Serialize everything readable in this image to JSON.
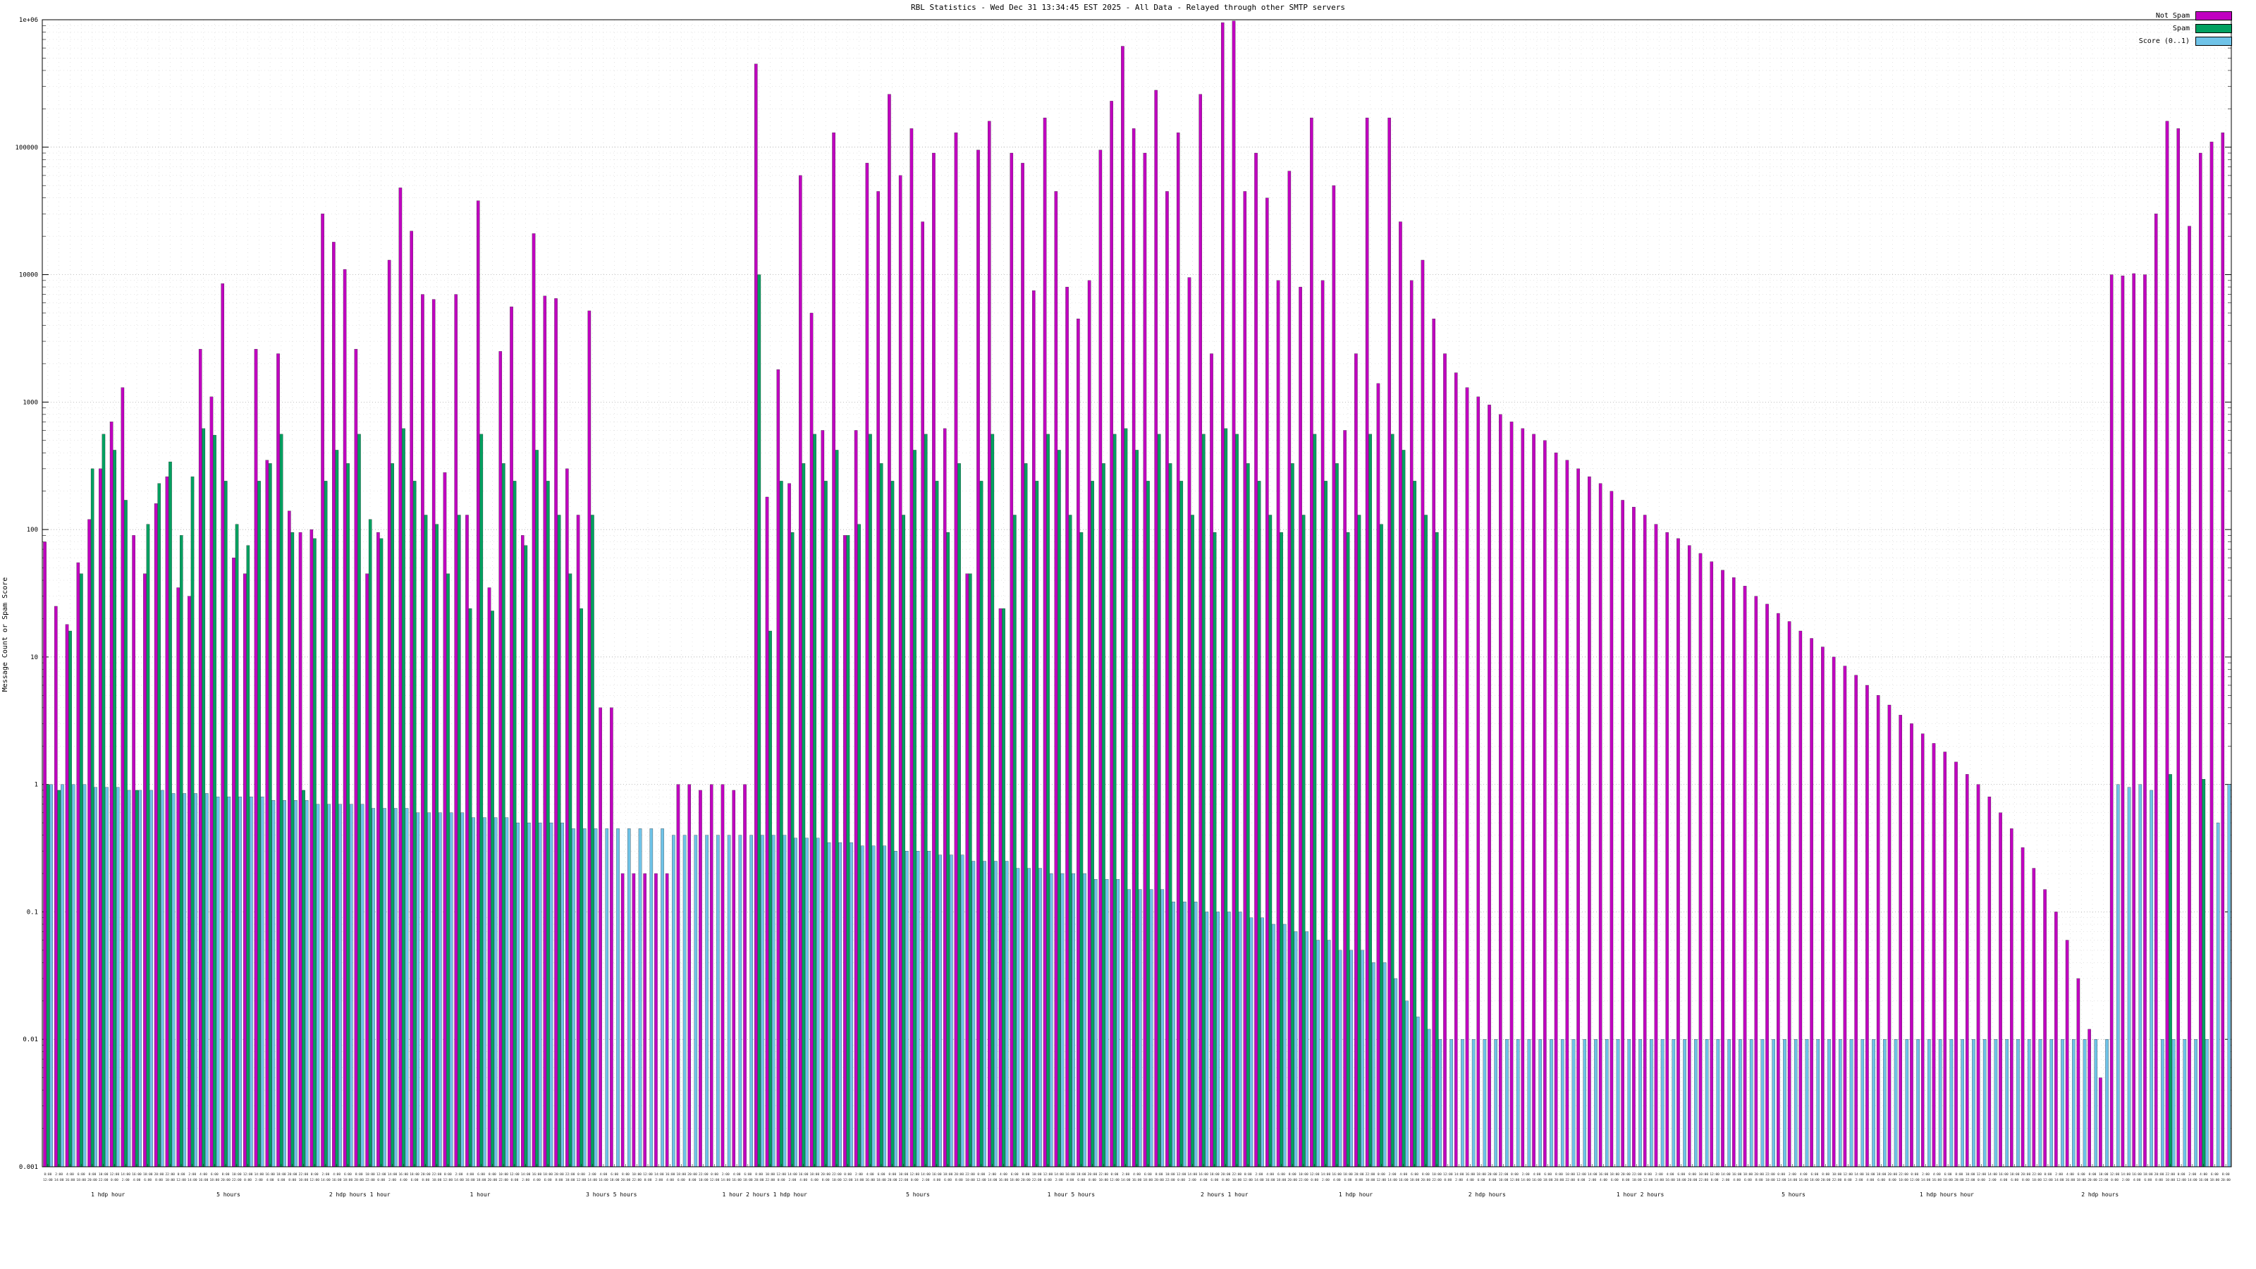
{
  "title": "RBL Statistics - Wed Dec 31 13:34:45 EST 2025 - All Data - Relayed through other SMTP servers",
  "y_axis": {
    "label": "Message Count or Spam Score",
    "min_exp": -3,
    "max_exp": 6,
    "ticks": [
      {
        "exp": 6,
        "label": "1e+06"
      },
      {
        "exp": 5,
        "label": "100000"
      },
      {
        "exp": 4,
        "label": "10000"
      },
      {
        "exp": 3,
        "label": "1000"
      },
      {
        "exp": 2,
        "label": "100"
      },
      {
        "exp": 1,
        "label": "10"
      },
      {
        "exp": 0,
        "label": "1"
      },
      {
        "exp": -1,
        "label": "0.1"
      },
      {
        "exp": -2,
        "label": "0.01"
      },
      {
        "exp": -3,
        "label": "0.001"
      }
    ]
  },
  "legend": [
    {
      "label": "Not Spam",
      "color": "#c000c0"
    },
    {
      "label": "Spam",
      "color": "#00a060"
    },
    {
      "label": "Score (0..1)",
      "color": "#6fc3e8"
    }
  ],
  "chart_data": {
    "type": "bar",
    "scale": "log",
    "ylim": [
      0.001,
      1000000
    ],
    "title": "RBL Statistics - Wed Dec 31 13:34:45 EST 2025 - All Data - Relayed through other SMTP servers",
    "xlabel": "",
    "ylabel": "Message Count or Spam Score",
    "grid": true,
    "legend_position": "top-right",
    "x_tick_cycle": [
      "0:00",
      "2:00",
      "4:00",
      "6:00",
      "8:00",
      "10:00",
      "12:00",
      "14:00",
      "16:00",
      "18:00",
      "20:00",
      "22:00"
    ],
    "x_group_labels": [
      {
        "text": "1 hdp hour",
        "pos": 0.03
      },
      {
        "text": "5 hours",
        "pos": 0.085
      },
      {
        "text": "2 hdp hours 1 hour",
        "pos": 0.145
      },
      {
        "text": "1 hour",
        "pos": 0.2
      },
      {
        "text": "3 hours 5 hours",
        "pos": 0.26
      },
      {
        "text": "1 hour 2 hours 1 hdp hour",
        "pos": 0.33
      },
      {
        "text": "5 hours",
        "pos": 0.4
      },
      {
        "text": "1 hour 5 hours",
        "pos": 0.47
      },
      {
        "text": "2 hours 1 hour",
        "pos": 0.54
      },
      {
        "text": "1 hdp hour",
        "pos": 0.6
      },
      {
        "text": "2 hdp hours",
        "pos": 0.66
      },
      {
        "text": "1 hour 2 hours",
        "pos": 0.73
      },
      {
        "text": "5 hours",
        "pos": 0.8
      },
      {
        "text": "1 hdp hours hour",
        "pos": 0.87
      },
      {
        "text": "2 hdp hours",
        "pos": 0.94
      }
    ],
    "series": [
      {
        "name": "Not Spam",
        "color": "#c000c0",
        "values": [
          80,
          25,
          18,
          55,
          120,
          300,
          700,
          1300,
          90,
          45,
          160,
          260,
          35,
          30,
          2600,
          1100,
          8500,
          60,
          45,
          2600,
          350,
          2400,
          140,
          95,
          100,
          30000,
          18000,
          11000,
          2600,
          45,
          95,
          13000,
          48000,
          22000,
          7000,
          6400,
          280,
          7000,
          130,
          38000,
          35,
          2500,
          5600,
          90,
          21000,
          6800,
          6500,
          300,
          130,
          5200,
          4,
          4,
          0.2,
          0.2,
          0.2,
          0.2,
          0.2,
          1,
          1,
          0.9,
          1,
          1,
          0.9,
          1,
          450000,
          180,
          1800,
          230,
          60000,
          5000,
          600,
          130000,
          90,
          600,
          75000,
          45000,
          260000,
          60000,
          140000,
          26000,
          90000,
          620,
          130000,
          45,
          95000,
          160000,
          24,
          90000,
          75000,
          7500,
          170000,
          45000,
          8000,
          4500,
          9000,
          95000,
          230000,
          620000,
          140000,
          90000,
          280000,
          45000,
          130000,
          9500,
          260000,
          2400,
          950000,
          980000,
          45000,
          90000,
          40000,
          9000,
          65000,
          8000,
          170000,
          9000,
          50000,
          600,
          2400,
          170000,
          1400,
          170000,
          26000,
          9000,
          13000,
          4500,
          2400,
          1700,
          1300,
          1100,
          950,
          800,
          700,
          620,
          560,
          500,
          400,
          350,
          300,
          260,
          230,
          200,
          170,
          150,
          130,
          110,
          95,
          85,
          75,
          65,
          56,
          48,
          42,
          36,
          30,
          26,
          22,
          19,
          16,
          14,
          12,
          10,
          8.5,
          7.2,
          6,
          5,
          4.2,
          3.5,
          3,
          2.5,
          2.1,
          1.8,
          1.5,
          1.2,
          1,
          0.8,
          0.6,
          0.45,
          0.32,
          0.22,
          0.15,
          0.1,
          0.06,
          0.03,
          0.012,
          0.005,
          10000,
          9800,
          10200,
          10000,
          30000,
          160000,
          140000,
          24000,
          90000,
          110000,
          130000
        ]
      },
      {
        "name": "Spam",
        "color": "#00a060",
        "values": [
          1,
          0.9,
          16,
          45,
          300,
          560,
          420,
          170,
          0.9,
          110,
          230,
          340,
          90,
          260,
          620,
          550,
          240,
          110,
          75,
          240,
          330,
          560,
          95,
          0.9,
          85,
          240,
          420,
          330,
          560,
          120,
          85,
          330,
          620,
          240,
          130,
          110,
          45,
          130,
          24,
          560,
          23,
          330,
          240,
          75,
          420,
          240,
          130,
          45,
          24,
          130,
          null,
          null,
          null,
          null,
          null,
          null,
          null,
          null,
          null,
          null,
          null,
          null,
          null,
          null,
          10000,
          16,
          240,
          95,
          330,
          560,
          240,
          420,
          90,
          110,
          560,
          330,
          240,
          130,
          420,
          560,
          240,
          95,
          330,
          45,
          240,
          560,
          24,
          130,
          330,
          240,
          560,
          420,
          130,
          95,
          240,
          330,
          560,
          620,
          420,
          240,
          560,
          330,
          240,
          130,
          560,
          95,
          620,
          560,
          330,
          240,
          130,
          95,
          330,
          130,
          560,
          240,
          330,
          95,
          130,
          560,
          110,
          560,
          420,
          240,
          130,
          95,
          null,
          null,
          null,
          null,
          null,
          null,
          null,
          null,
          null,
          null,
          null,
          null,
          null,
          null,
          null,
          null,
          null,
          null,
          null,
          null,
          null,
          null,
          null,
          null,
          null,
          null,
          null,
          null,
          null,
          null,
          null,
          null,
          null,
          null,
          null,
          null,
          null,
          null,
          null,
          null,
          null,
          null,
          null,
          null,
          null,
          null,
          null,
          null,
          null,
          null,
          null,
          null,
          null,
          null,
          null,
          null,
          null,
          null,
          null,
          null,
          null,
          null,
          null,
          null,
          null,
          1.2,
          null,
          null,
          1.1,
          null,
          null
        ]
      },
      {
        "name": "Score (0..1)",
        "color": "#6fc3e8",
        "values": [
          1,
          1,
          1,
          1,
          0.95,
          0.95,
          0.95,
          0.9,
          0.9,
          0.9,
          0.9,
          0.85,
          0.85,
          0.85,
          0.85,
          0.8,
          0.8,
          0.8,
          0.8,
          0.8,
          0.75,
          0.75,
          0.75,
          0.75,
          0.7,
          0.7,
          0.7,
          0.7,
          0.7,
          0.65,
          0.65,
          0.65,
          0.65,
          0.6,
          0.6,
          0.6,
          0.6,
          0.6,
          0.55,
          0.55,
          0.55,
          0.55,
          0.5,
          0.5,
          0.5,
          0.5,
          0.5,
          0.45,
          0.45,
          0.45,
          0.45,
          0.45,
          0.45,
          0.45,
          0.45,
          0.45,
          0.4,
          0.4,
          0.4,
          0.4,
          0.4,
          0.4,
          0.4,
          0.4,
          0.4,
          0.4,
          0.4,
          0.38,
          0.38,
          0.38,
          0.35,
          0.35,
          0.35,
          0.33,
          0.33,
          0.33,
          0.3,
          0.3,
          0.3,
          0.3,
          0.28,
          0.28,
          0.28,
          0.25,
          0.25,
          0.25,
          0.25,
          0.22,
          0.22,
          0.22,
          0.2,
          0.2,
          0.2,
          0.2,
          0.18,
          0.18,
          0.18,
          0.15,
          0.15,
          0.15,
          0.15,
          0.12,
          0.12,
          0.12,
          0.1,
          0.1,
          0.1,
          0.1,
          0.09,
          0.09,
          0.08,
          0.08,
          0.07,
          0.07,
          0.06,
          0.06,
          0.05,
          0.05,
          0.05,
          0.04,
          0.04,
          0.03,
          0.02,
          0.015,
          0.012,
          0.01,
          0.01,
          0.01,
          0.01,
          0.01,
          0.01,
          0.01,
          0.01,
          0.01,
          0.01,
          0.01,
          0.01,
          0.01,
          0.01,
          0.01,
          0.01,
          0.01,
          0.01,
          0.01,
          0.01,
          0.01,
          0.01,
          0.01,
          0.01,
          0.01,
          0.01,
          0.01,
          0.01,
          0.01,
          0.01,
          0.01,
          0.01,
          0.01,
          0.01,
          0.01,
          0.01,
          0.01,
          0.01,
          0.01,
          0.01,
          0.01,
          0.01,
          0.01,
          0.01,
          0.01,
          0.01,
          0.01,
          0.01,
          0.01,
          0.01,
          0.01,
          0.01,
          0.01,
          0.01,
          0.01,
          0.01,
          0.01,
          0.01,
          0.01,
          0.01,
          0.01,
          1,
          0.95,
          1,
          0.9,
          0.01,
          0.01,
          0.01,
          0.01,
          0.01,
          0.5,
          1
        ]
      }
    ]
  }
}
